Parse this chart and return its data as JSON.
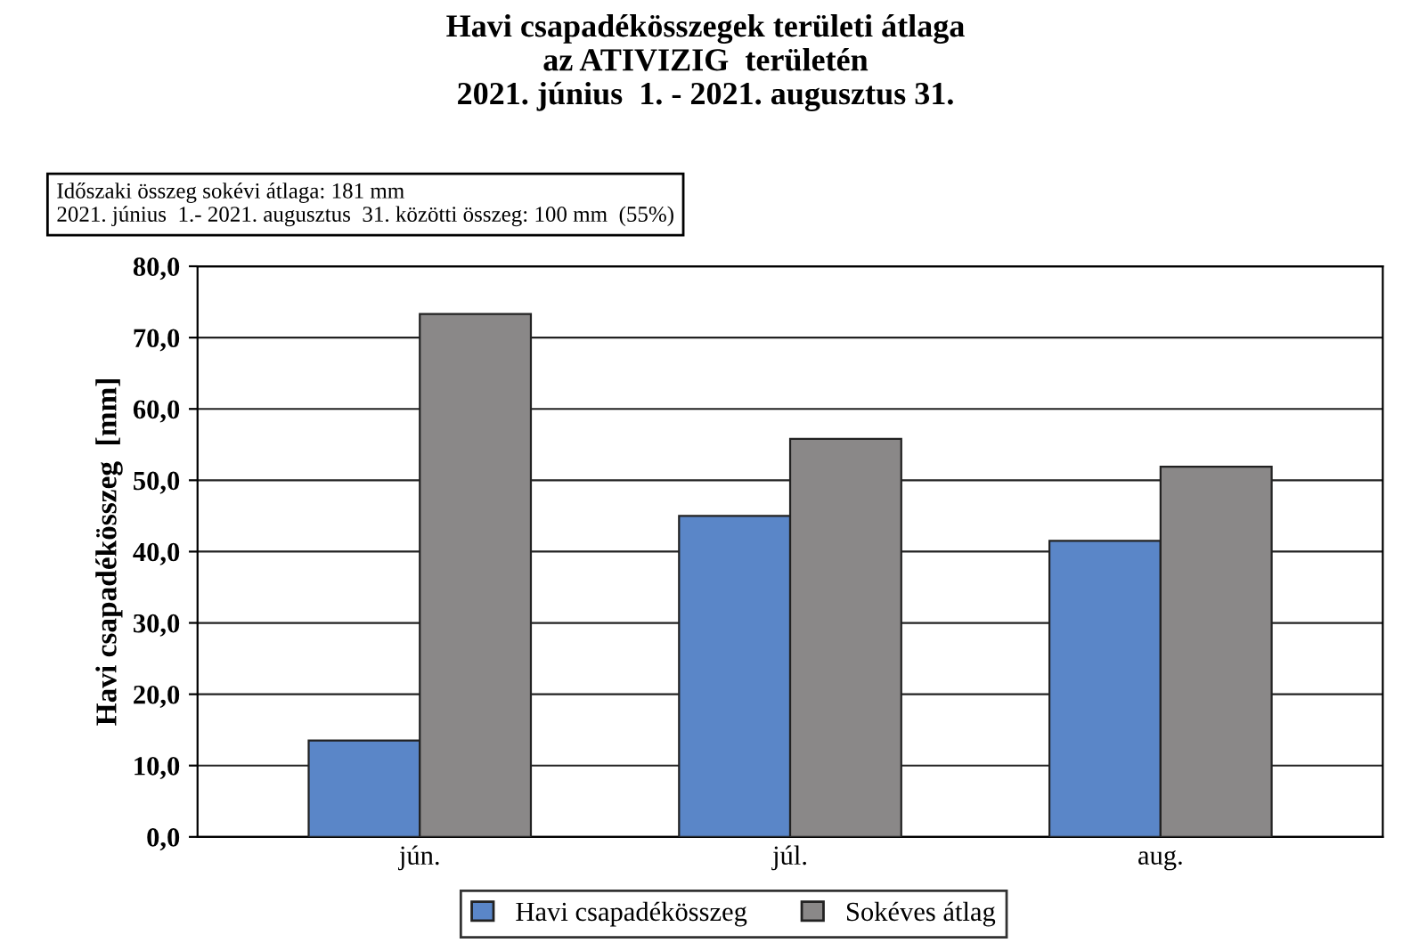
{
  "chart_data": {
    "type": "bar",
    "title": "Havi csapadékösszegek területi átlaga\naz ATIVIZIG  területén\n2021. június  1. - 2021. augusztus 31.",
    "annotations": [
      "Időszaki összeg sokévi átlaga: 181 mm\n2021. június  1.- 2021. augusztus  31. közötti összeg: 100 mm  (55%)"
    ],
    "ylabel": "Havi csapadékösszeg  [mm]",
    "categories": [
      "jún.",
      "júl.",
      "aug."
    ],
    "series": [
      {
        "name": "Havi csapadékösszeg",
        "color": "#5a86c8",
        "values": [
          13.5,
          45.0,
          41.5
        ]
      },
      {
        "name": "Sokéves átlag",
        "color": "#8a8888",
        "values": [
          73.3,
          55.8,
          51.9
        ]
      }
    ],
    "ylim": [
      0,
      80
    ],
    "yticks": [
      {
        "value": 0,
        "label": "0,0"
      },
      {
        "value": 10,
        "label": "10,0"
      },
      {
        "value": 20,
        "label": "20,0"
      },
      {
        "value": 30,
        "label": "30,0"
      },
      {
        "value": 40,
        "label": "40,0"
      },
      {
        "value": 50,
        "label": "50,0"
      },
      {
        "value": 60,
        "label": "60,0"
      },
      {
        "value": 70,
        "label": "70,0"
      },
      {
        "value": 80,
        "label": "80,0"
      }
    ],
    "grid": "y",
    "legend": "bottom"
  }
}
